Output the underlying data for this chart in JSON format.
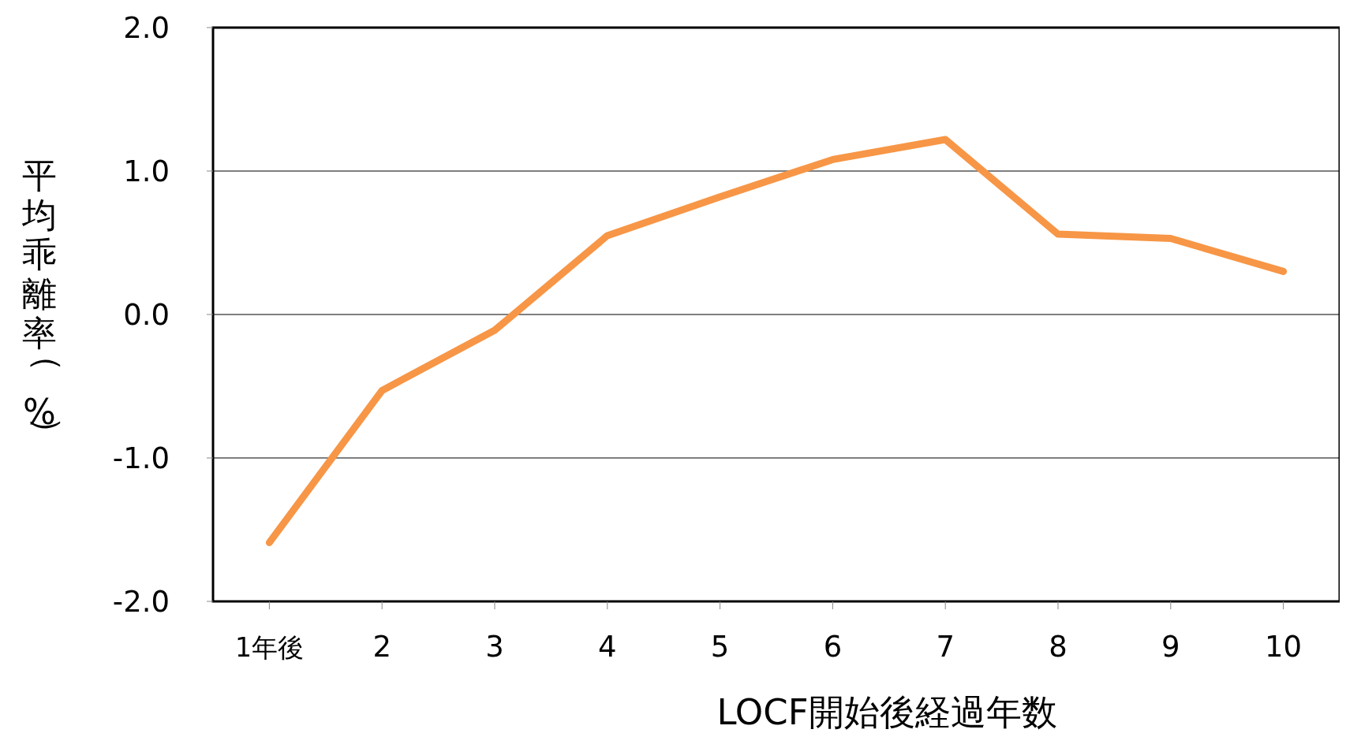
{
  "chart_data": {
    "type": "line",
    "xlabel": "LOCF開始後経過年数",
    "ylabel": "平均乖離率（%）",
    "categories": [
      "1年後",
      "2",
      "3",
      "4",
      "5",
      "6",
      "7",
      "8",
      "9",
      "10"
    ],
    "series": [
      {
        "color": "#f79646",
        "values": [
          -1.59,
          -0.53,
          -0.11,
          0.55,
          0.82,
          1.08,
          1.22,
          0.56,
          0.53,
          0.3
        ]
      }
    ],
    "ylim": [
      -2,
      2
    ],
    "yticks": [
      {
        "value": -2,
        "label": "-2.0"
      },
      {
        "value": -1,
        "label": "-1.0"
      },
      {
        "value": 0,
        "label": "0.0"
      },
      {
        "value": 1,
        "label": "1.0"
      },
      {
        "value": 2,
        "label": "2.0"
      }
    ],
    "grid": "y",
    "marker": "none",
    "line_style": "solid"
  }
}
